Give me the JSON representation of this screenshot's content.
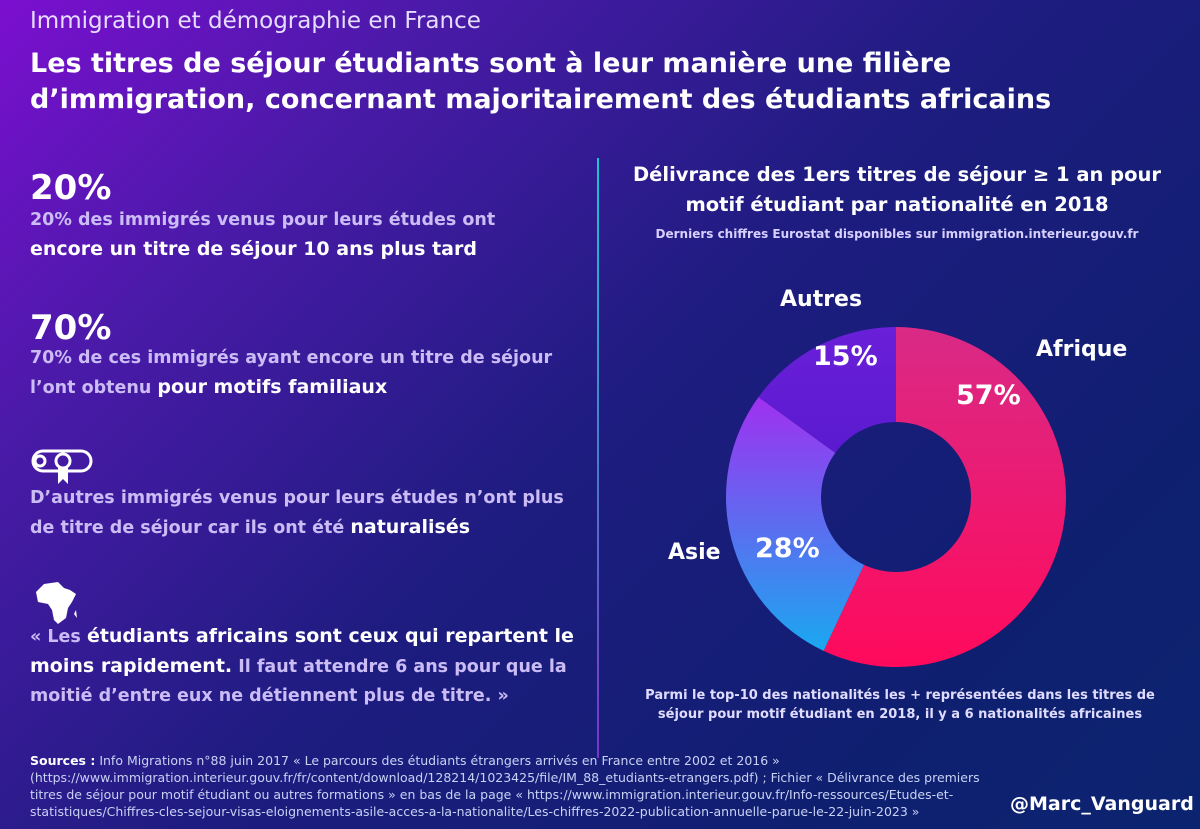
{
  "header": {
    "kicker": "Immigration et démographie en France",
    "title": "Les titres de séjour étudiants sont à leur manière une filière d’immigration, concernant majoritairement des étudiants africains"
  },
  "facts": [
    {
      "big": "20%",
      "text": "20% des immigrés venus pour leurs études ont ",
      "bold": "encore un titre de séjour 10 ans plus tard",
      "after": ""
    },
    {
      "big": "70%",
      "text": "70% de ces immigrés ayant encore un titre de séjour l’ont obtenu ",
      "bold": "pour motifs familiaux",
      "after": ""
    },
    {
      "icon": "diploma-icon",
      "text": "D’autres immigrés venus pour leurs études n’ont plus de titre de séjour car ils ont été ",
      "bold": "naturalisés",
      "after": ""
    },
    {
      "icon": "africa-map-icon",
      "text": "« Les ",
      "bold": "étudiants africains sont ceux qui repartent le moins rapidement.",
      "after": " Il faut attendre 6 ans pour que la moitié d’entre eux ne détiennent plus de titre. »"
    }
  ],
  "chart_data": {
    "type": "pie",
    "donut": true,
    "title": "Délivrance des 1ers  titres de séjour ≥ 1 an pour motif étudiant par nationalité en 2018",
    "subtitle": "Derniers chiffres Eurostat disponibles sur immigration.interieur.gouv.fr",
    "categories": [
      "Afrique",
      "Asie",
      "Autres"
    ],
    "values": [
      57,
      28,
      15
    ],
    "labels": [
      "57%",
      "28%",
      "15%"
    ],
    "colors": [
      [
        "#ff0a5c",
        "#d92a86"
      ],
      [
        "#1aa8f0",
        "#a030f0"
      ],
      [
        "#5a1ad0",
        "#6a1fd8"
      ]
    ],
    "note": "Parmi le top-10 des nationalités les + représentées dans les titres de séjour pour motif étudiant en 2018, il y a 6 nationalités africaines"
  },
  "footer": {
    "sources_label": "Sources :",
    "sources": " Info Migrations n°88 juin 2017 « Le parcours des étudiants étrangers arrivés en France entre 2002 et 2016 » (https://www.immigration.interieur.gouv.fr/fr/content/download/128214/1023425/file/IM_88_etudiants-etrangers.pdf) ; Fichier « Délivrance des premiers titres de séjour pour motif étudiant ou autres formations » en bas de la page « https://www.immigration.interieur.gouv.fr/Info-ressources/Etudes-et-statistiques/Chiffres-cles-sejour-visas-eloignements-asile-acces-a-la-nationalite/Les-chiffres-2022-publication-annuelle-parue-le-22-juin-2023 »",
    "handle": "@Marc_Vanguard"
  }
}
